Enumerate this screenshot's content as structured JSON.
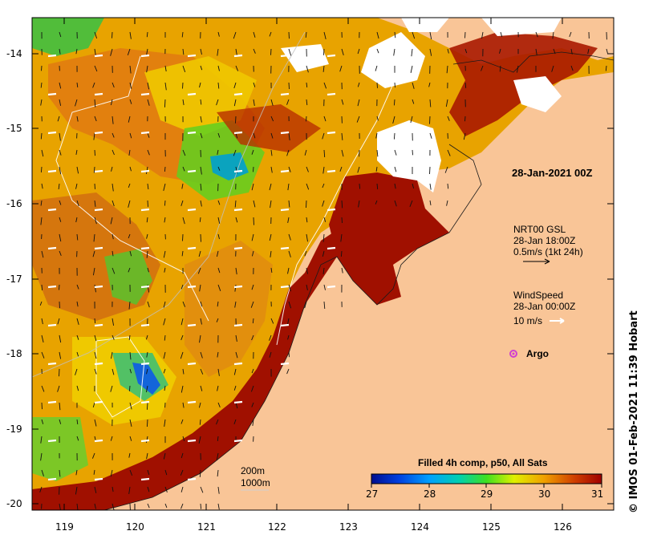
{
  "map": {
    "timestamp": "28-Jan-2021 00Z",
    "lat_ticks": [
      "-14",
      "-15",
      "-16",
      "-17",
      "-18",
      "-19",
      "-20"
    ],
    "lon_ticks": [
      "119",
      "120",
      "121",
      "122",
      "123",
      "124",
      "125",
      "126"
    ],
    "land_color": "#f9c597",
    "sst_colors": [
      "#000e8f",
      "#0070ff",
      "#00d0c0",
      "#30e030",
      "#f0f000",
      "#f0a000",
      "#d06000",
      "#a01000"
    ]
  },
  "current_legend": {
    "product": "NRT00 GSL",
    "time": "28-Jan 18:00Z",
    "scale": "0.5m/s (1kt 24h)"
  },
  "wind_legend": {
    "title": "WindSpeed",
    "time": "28-Jan 00:00Z",
    "scale": "10 m/s"
  },
  "argo_legend": {
    "label": "Argo",
    "color": "#d040d0"
  },
  "contour_legend": {
    "label_200": "200m",
    "label_1000": "1000m"
  },
  "colorbar": {
    "title": "Filled 4h comp, p50, All Sats",
    "ticks": [
      "27",
      "28",
      "29",
      "30",
      "31"
    ],
    "range": [
      27,
      31
    ]
  },
  "credit": "© IMOS 01-Feb-2021 11:39 Hobart"
}
